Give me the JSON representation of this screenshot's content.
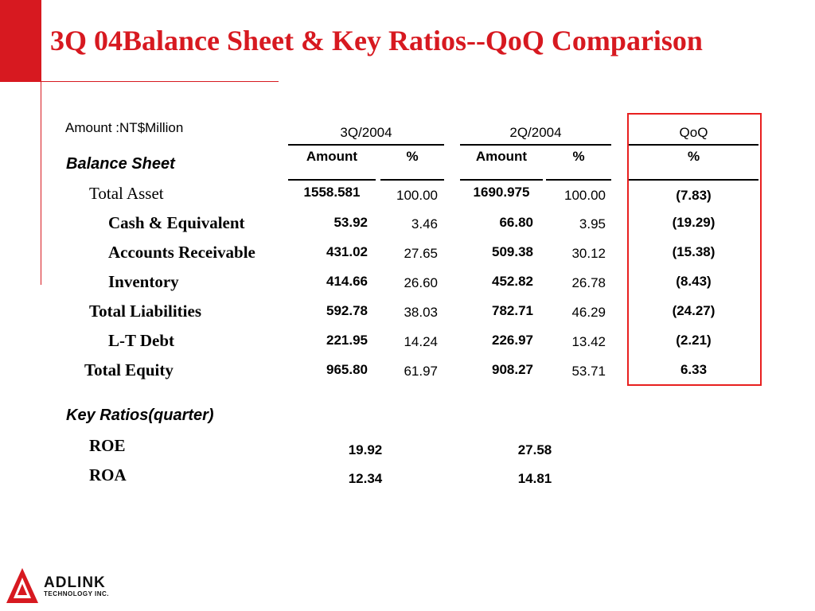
{
  "title": "3Q 04Balance Sheet & Key Ratios--QoQ Comparison",
  "unit_note": "Amount :NT$Million",
  "headers": {
    "period1": "3Q/2004",
    "period2": "2Q/2004",
    "qoq": "QoQ",
    "amount": "Amount",
    "pct": "%"
  },
  "balance_sheet": {
    "label": "Balance Sheet",
    "rows": [
      {
        "label": "Total Asset",
        "q3_amount": "1558.581",
        "q3_pct": "100.00",
        "q2_amount": "1690.975",
        "q2_pct": "100.00",
        "qoq": "(7.83)"
      },
      {
        "label": "Cash & Equivalent",
        "q3_amount": "53.92",
        "q3_pct": "3.46",
        "q2_amount": "66.80",
        "q2_pct": "3.95",
        "qoq": "(19.29)"
      },
      {
        "label": "Accounts Receivable",
        "q3_amount": "431.02",
        "q3_pct": "27.65",
        "q2_amount": "509.38",
        "q2_pct": "30.12",
        "qoq": "(15.38)"
      },
      {
        "label": "Inventory",
        "q3_amount": "414.66",
        "q3_pct": "26.60",
        "q2_amount": "452.82",
        "q2_pct": "26.78",
        "qoq": "(8.43)"
      },
      {
        "label": "Total Liabilities",
        "q3_amount": "592.78",
        "q3_pct": "38.03",
        "q2_amount": "782.71",
        "q2_pct": "46.29",
        "qoq": "(24.27)"
      },
      {
        "label": "L-T Debt",
        "q3_amount": "221.95",
        "q3_pct": "14.24",
        "q2_amount": "226.97",
        "q2_pct": "13.42",
        "qoq": "(2.21)"
      },
      {
        "label": "Total Equity",
        "q3_amount": "965.80",
        "q3_pct": "61.97",
        "q2_amount": "908.27",
        "q2_pct": "53.71",
        "qoq": "6.33"
      }
    ]
  },
  "key_ratios": {
    "label": "Key Ratios(quarter)",
    "rows": [
      {
        "label": "ROE",
        "q3": "19.92",
        "q2": "27.58"
      },
      {
        "label": "ROA",
        "q3": "12.34",
        "q2": "14.81"
      }
    ]
  },
  "logo": {
    "name": "ADLINK",
    "tagline": "TECHNOLOGY INC.",
    "color": "#d71920"
  },
  "colors": {
    "accent": "#d71920",
    "qoq_box": "#e8201f"
  }
}
